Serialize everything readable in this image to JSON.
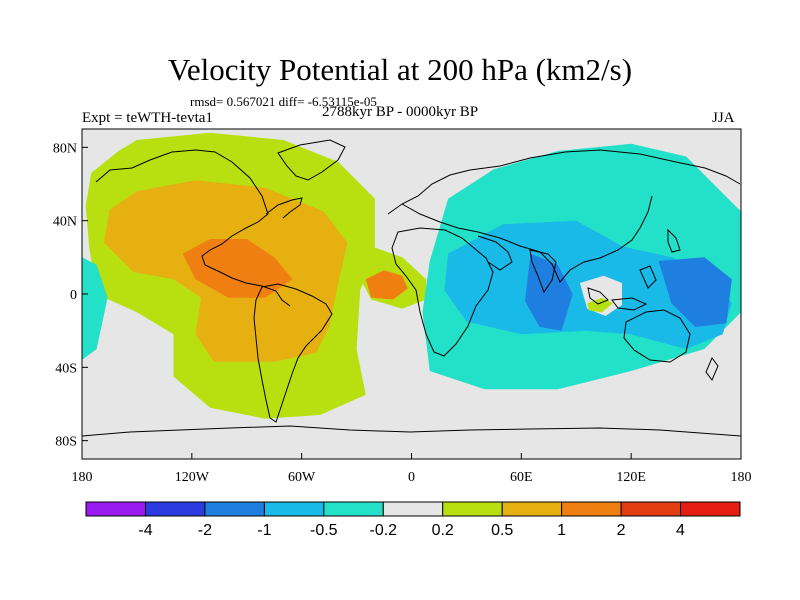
{
  "chart_data": {
    "type": "heatmap",
    "title": "Velocity Potential at 200 hPa (km2/s)",
    "stats": "rmsd= 0.567021  diff= -6.53115e-05",
    "experiment": "Expt = teWTH-tevta1",
    "period": "2788kyr BP - 0000kyr BP",
    "season": "JJA",
    "x_range": [
      -180,
      180
    ],
    "y_range": [
      -90,
      90
    ],
    "x_ticks": [
      {
        "value": -180,
        "label": "180"
      },
      {
        "value": -120,
        "label": "120W"
      },
      {
        "value": -60,
        "label": "60W"
      },
      {
        "value": 0,
        "label": "0"
      },
      {
        "value": 60,
        "label": "60E"
      },
      {
        "value": 120,
        "label": "120E"
      },
      {
        "value": 180,
        "label": "180"
      }
    ],
    "y_ticks": [
      {
        "value": 80,
        "label": "80N"
      },
      {
        "value": 40,
        "label": "40N"
      },
      {
        "value": 0,
        "label": "0"
      },
      {
        "value": -40,
        "label": "40S"
      },
      {
        "value": -80,
        "label": "80S"
      }
    ],
    "colorbar": {
      "levels": [
        "-4",
        "-2",
        "-1",
        "-0.5",
        "-0.2",
        "0.2",
        "0.5",
        "1",
        "2",
        "4"
      ],
      "colors": [
        "#9a1bf0",
        "#2b3be0",
        "#1f7fe0",
        "#19b9e8",
        "#23e0c8",
        "#e6e6e6",
        "#b8e011",
        "#e6b010",
        "#f07f12",
        "#e23d10",
        "#e41c12"
      ]
    },
    "regions": [
      {
        "name": "positive-outer",
        "level": 6,
        "points": [
          [
            -160,
            78
          ],
          [
            -150,
            84
          ],
          [
            -110,
            88
          ],
          [
            -70,
            84
          ],
          [
            -40,
            72
          ],
          [
            -20,
            52
          ],
          [
            -20,
            22
          ],
          [
            -28,
            2
          ],
          [
            -30,
            -30
          ],
          [
            -25,
            -55
          ],
          [
            -50,
            -66
          ],
          [
            -80,
            -68
          ],
          [
            -110,
            -62
          ],
          [
            -130,
            -45
          ],
          [
            -130,
            -22
          ],
          [
            -150,
            -10
          ],
          [
            -172,
            0
          ],
          [
            -176,
            25
          ],
          [
            -178,
            48
          ],
          [
            -175,
            66
          ]
        ]
      },
      {
        "name": "positive-atlantic-lobe",
        "level": 6,
        "points": [
          [
            -30,
            12
          ],
          [
            -22,
            26
          ],
          [
            -5,
            20
          ],
          [
            8,
            8
          ],
          [
            8,
            -3
          ],
          [
            -5,
            -8
          ],
          [
            -22,
            -3
          ]
        ]
      },
      {
        "name": "positive-mid",
        "level": 7,
        "points": [
          [
            -165,
            46
          ],
          [
            -150,
            56
          ],
          [
            -118,
            62
          ],
          [
            -80,
            58
          ],
          [
            -48,
            45
          ],
          [
            -35,
            28
          ],
          [
            -40,
            6
          ],
          [
            -45,
            -18
          ],
          [
            -52,
            -32
          ],
          [
            -75,
            -37
          ],
          [
            -108,
            -37
          ],
          [
            -118,
            -22
          ],
          [
            -115,
            -2
          ],
          [
            -130,
            8
          ],
          [
            -152,
            12
          ],
          [
            -168,
            28
          ]
        ]
      },
      {
        "name": "positive-core-west",
        "level": 8,
        "points": [
          [
            -125,
            22
          ],
          [
            -110,
            30
          ],
          [
            -90,
            30
          ],
          [
            -75,
            20
          ],
          [
            -65,
            8
          ],
          [
            -80,
            -2
          ],
          [
            -100,
            -2
          ],
          [
            -118,
            8
          ]
        ]
      },
      {
        "name": "positive-core-east",
        "level": 8,
        "points": [
          [
            -25,
            8
          ],
          [
            -15,
            13
          ],
          [
            -5,
            10
          ],
          [
            -2,
            3
          ],
          [
            -10,
            -3
          ],
          [
            -22,
            -2
          ]
        ]
      },
      {
        "name": "negative-outer",
        "level": 4,
        "points": [
          [
            20,
            52
          ],
          [
            45,
            68
          ],
          [
            80,
            78
          ],
          [
            120,
            82
          ],
          [
            150,
            75
          ],
          [
            165,
            60
          ],
          [
            180,
            45
          ],
          [
            180,
            -10
          ],
          [
            160,
            -30
          ],
          [
            120,
            -42
          ],
          [
            80,
            -52
          ],
          [
            40,
            -52
          ],
          [
            10,
            -42
          ],
          [
            6,
            -10
          ],
          [
            10,
            18
          ]
        ]
      },
      {
        "name": "negative-west-lobe",
        "level": 4,
        "points": [
          [
            -180,
            20
          ],
          [
            -172,
            16
          ],
          [
            -166,
            -2
          ],
          [
            -172,
            -30
          ],
          [
            -180,
            -36
          ]
        ]
      },
      {
        "name": "negative-mid",
        "level": 3,
        "points": [
          [
            20,
            22
          ],
          [
            50,
            38
          ],
          [
            90,
            40
          ],
          [
            115,
            26
          ],
          [
            142,
            20
          ],
          [
            165,
            10
          ],
          [
            175,
            -5
          ],
          [
            170,
            -22
          ],
          [
            150,
            -30
          ],
          [
            120,
            -22
          ],
          [
            95,
            -20
          ],
          [
            60,
            -22
          ],
          [
            30,
            -15
          ],
          [
            18,
            2
          ]
        ]
      },
      {
        "name": "negative-core-indian",
        "level": 2,
        "points": [
          [
            65,
            22
          ],
          [
            80,
            16
          ],
          [
            88,
            0
          ],
          [
            82,
            -20
          ],
          [
            70,
            -18
          ],
          [
            62,
            -4
          ]
        ]
      },
      {
        "name": "negative-core-pacific",
        "level": 2,
        "points": [
          [
            135,
            18
          ],
          [
            160,
            20
          ],
          [
            175,
            8
          ],
          [
            172,
            -16
          ],
          [
            155,
            -18
          ],
          [
            142,
            -5
          ]
        ]
      },
      {
        "name": "neutral-hole",
        "level": 5,
        "points": [
          [
            92,
            6
          ],
          [
            105,
            10
          ],
          [
            115,
            6
          ],
          [
            115,
            -6
          ],
          [
            106,
            -12
          ],
          [
            96,
            -8
          ]
        ]
      },
      {
        "name": "positive-blob-indonesia",
        "level": 6,
        "points": [
          [
            96,
            -5
          ],
          [
            104,
            -2
          ],
          [
            110,
            -5
          ],
          [
            104,
            -10
          ],
          [
            97,
            -9
          ]
        ]
      }
    ]
  }
}
